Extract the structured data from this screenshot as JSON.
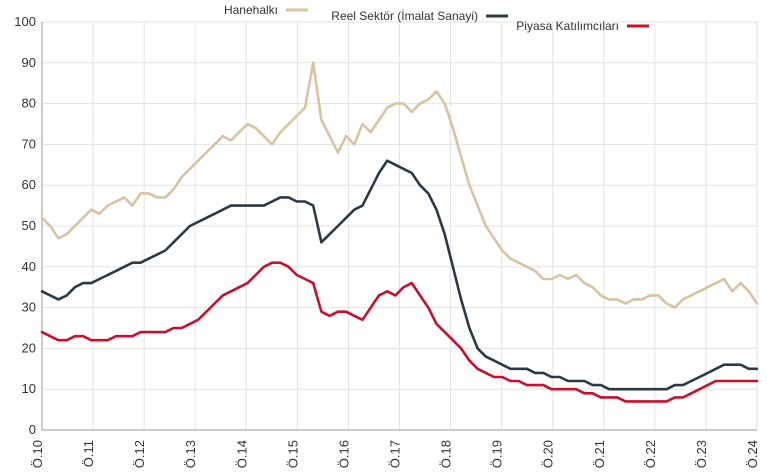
{
  "chart_data": {
    "type": "line",
    "title": "",
    "xlabel": "",
    "ylabel": "",
    "ylim": [
      0,
      100
    ],
    "y_ticks": [
      0,
      10,
      20,
      30,
      40,
      50,
      60,
      70,
      80,
      90,
      100
    ],
    "grid": true,
    "legend_position": "top",
    "x_tick_labels": [
      "Ö.10",
      "Ö.11",
      "Ö.12",
      "Ö.13",
      "Ö.14",
      "Ö.15",
      "Ö.16",
      "Ö.17",
      "Ö.18",
      "Ö.19",
      "Ö.20",
      "Ö.21",
      "Ö.22",
      "Ö.23",
      "Ö.24"
    ],
    "series": [
      {
        "name": "Hanehalkı",
        "color": "#d8c3a2",
        "values": [
          52,
          50,
          47,
          48,
          50,
          52,
          54,
          53,
          55,
          56,
          57,
          55,
          58,
          58,
          57,
          57,
          59,
          62,
          64,
          66,
          68,
          70,
          72,
          71,
          73,
          75,
          74,
          72,
          70,
          73,
          75,
          77,
          79,
          90,
          76,
          72,
          68,
          72,
          70,
          75,
          73,
          76,
          79,
          80,
          80,
          78,
          80,
          81,
          83,
          80,
          74,
          67,
          60,
          55,
          50,
          47,
          44,
          42,
          41,
          40,
          39,
          37,
          37,
          38,
          37,
          38,
          36,
          35,
          33,
          32,
          32,
          31,
          32,
          32,
          33,
          33,
          31,
          30,
          32,
          33,
          34,
          35,
          36,
          37,
          34,
          36,
          34,
          31
        ]
      },
      {
        "name": "Reel Sektör (İmalat Sanayi)",
        "color": "#2c3a48",
        "values": [
          34,
          33,
          32,
          33,
          35,
          36,
          36,
          37,
          38,
          39,
          40,
          41,
          41,
          42,
          43,
          44,
          46,
          48,
          50,
          51,
          52,
          53,
          54,
          55,
          55,
          55,
          55,
          55,
          56,
          57,
          57,
          56,
          56,
          55,
          46,
          48,
          50,
          52,
          54,
          55,
          59,
          63,
          66,
          65,
          64,
          63,
          60,
          58,
          54,
          48,
          40,
          32,
          25,
          20,
          18,
          17,
          16,
          15,
          15,
          15,
          14,
          14,
          13,
          13,
          12,
          12,
          12,
          11,
          11,
          10,
          10,
          10,
          10,
          10,
          10,
          10,
          10,
          11,
          11,
          12,
          13,
          14,
          15,
          16,
          16,
          16,
          15,
          15
        ]
      },
      {
        "name": "Piyasa Katılımcıları",
        "color": "#c8102e",
        "values": [
          24,
          23,
          22,
          22,
          23,
          23,
          22,
          22,
          22,
          23,
          23,
          23,
          24,
          24,
          24,
          24,
          25,
          25,
          26,
          27,
          29,
          31,
          33,
          34,
          35,
          36,
          38,
          40,
          41,
          41,
          40,
          38,
          37,
          36,
          29,
          28,
          29,
          29,
          28,
          27,
          30,
          33,
          34,
          33,
          35,
          36,
          33,
          30,
          26,
          24,
          22,
          20,
          17,
          15,
          14,
          13,
          13,
          12,
          12,
          11,
          11,
          11,
          10,
          10,
          10,
          10,
          9,
          9,
          8,
          8,
          8,
          7,
          7,
          7,
          7,
          7,
          7,
          8,
          8,
          9,
          10,
          11,
          12,
          12,
          12,
          12,
          12,
          12
        ]
      }
    ]
  }
}
